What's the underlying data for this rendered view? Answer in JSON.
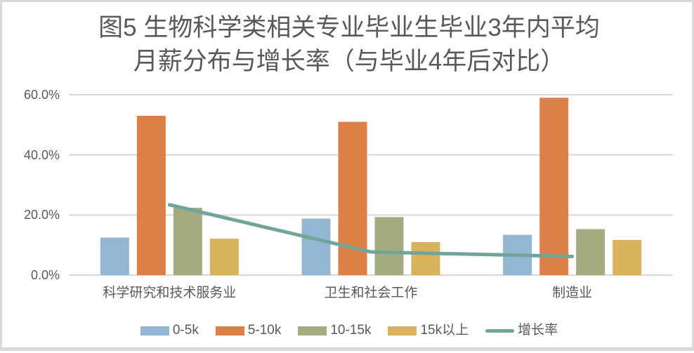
{
  "chart": {
    "title_line1": "图5 生物科学类相关专业毕业生毕业3年内平均",
    "title_line2": "月薪分布与增长率（与毕业4年后对比）",
    "colors": {
      "grid": "#d9d9d9",
      "text": "#595959",
      "background": "#ffffff",
      "border": "#d9d9d9"
    }
  },
  "chart_data": {
    "type": "bar",
    "subtype": "clustered-bars-with-line-overlay",
    "title": "图5 生物科学类相关专业毕业生毕业3年内平均月薪分布与增长率（与毕业4年后对比）",
    "categories": [
      "科学研究和技术服务业",
      "卫生和社会工作",
      "制造业"
    ],
    "series": [
      {
        "name": "0-5k",
        "kind": "bar",
        "color": "#94b6d2",
        "values": [
          12.5,
          18.8,
          13.4
        ]
      },
      {
        "name": "5-10k",
        "kind": "bar",
        "color": "#dd8047",
        "values": [
          53.0,
          51.0,
          59.0
        ]
      },
      {
        "name": "10-15k",
        "kind": "bar",
        "color": "#a5ab81",
        "values": [
          22.4,
          19.3,
          15.3
        ]
      },
      {
        "name": "15k以上",
        "kind": "bar",
        "color": "#d8b25c",
        "values": [
          12.1,
          11.0,
          11.7
        ]
      },
      {
        "name": "增长率",
        "kind": "line",
        "color": "#72a49a",
        "values": [
          23.4,
          7.7,
          6.2
        ]
      }
    ],
    "ylabel": "",
    "xlabel": "",
    "ylim": [
      0,
      60
    ],
    "yticks": [
      {
        "label": "0.0%",
        "value": 0
      },
      {
        "label": "20.0%",
        "value": 20
      },
      {
        "label": "40.0%",
        "value": 40
      },
      {
        "label": "60.0%",
        "value": 60
      }
    ],
    "grid": true,
    "legend_position": "bottom"
  }
}
